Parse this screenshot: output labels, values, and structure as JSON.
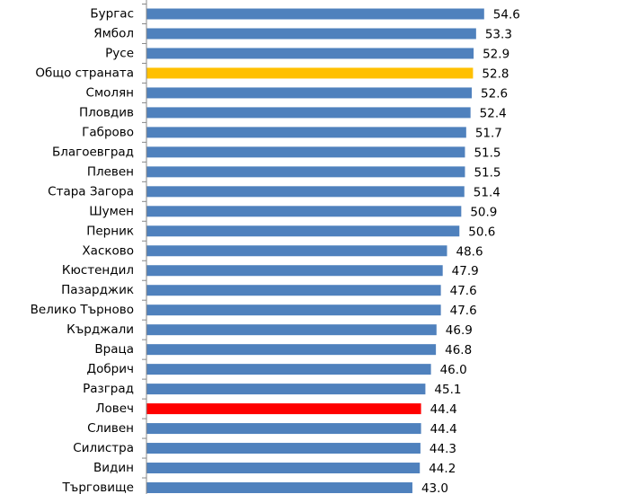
{
  "chart_data": {
    "type": "bar",
    "orientation": "horizontal",
    "categories": [
      "Бургас",
      "Ямбол",
      "Русе",
      "Общо страната",
      "Смолян",
      "Пловдив",
      "Габрово",
      "Благоевград",
      "Плевен",
      "Стара Загора",
      "Шумен",
      "Перник",
      "Хасково",
      "Кюстендил",
      "Пазарджик",
      "Велико Търново",
      "Кърджали",
      "Враца",
      "Добрич",
      "Разград",
      "Ловеч",
      "Сливен",
      "Силистра",
      "Видин",
      "Търговище"
    ],
    "values": [
      54.6,
      53.3,
      52.9,
      52.8,
      52.6,
      52.4,
      51.7,
      51.5,
      51.5,
      51.4,
      50.9,
      50.6,
      48.6,
      47.9,
      47.6,
      47.6,
      46.9,
      46.8,
      46.0,
      45.1,
      44.4,
      44.4,
      44.3,
      44.2,
      43.0
    ],
    "value_labels": [
      "54.6",
      "53.3",
      "52.9",
      "52.8",
      "52.6",
      "52.4",
      "51.7",
      "51.5",
      "51.5",
      "51.4",
      "50.9",
      "50.6",
      "48.6",
      "47.9",
      "47.6",
      "47.6",
      "46.9",
      "46.8",
      "46.0",
      "45.1",
      "44.4",
      "44.4",
      "44.3",
      "44.2",
      "43.0"
    ],
    "colors": {
      "default": "#4F81BD",
      "Общо страната": "#FFC000",
      "Ловеч": "#FF0000"
    },
    "title": "",
    "xlabel": "",
    "ylabel": "",
    "grid": false
  }
}
